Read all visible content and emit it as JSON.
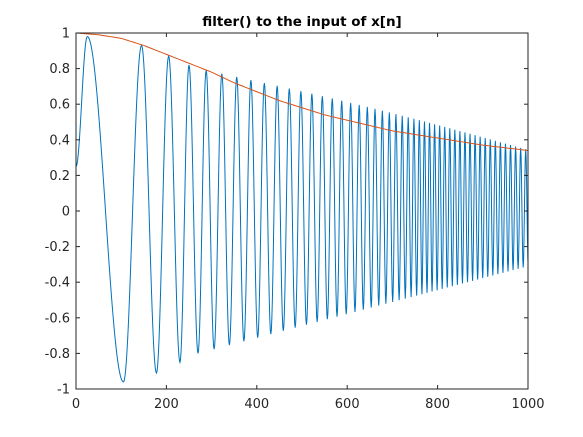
{
  "chart_data": {
    "type": "line",
    "title": "filter() to the input of x[n]",
    "xlabel": "",
    "ylabel": "",
    "xlim": [
      0,
      1000
    ],
    "ylim": [
      -1,
      1
    ],
    "xticks": [
      0,
      200,
      400,
      600,
      800,
      1000
    ],
    "xtick_labels": [
      "0",
      "200",
      "400",
      "600",
      "800",
      "1000"
    ],
    "yticks": [
      -1,
      -0.8,
      -0.6,
      -0.4,
      -0.2,
      0,
      0.2,
      0.4,
      0.6,
      0.8,
      1
    ],
    "ytick_labels": [
      "-1",
      "-0.8",
      "-0.6",
      "-0.4",
      "-0.2",
      "0",
      "0.2",
      "0.4",
      "0.6",
      "0.8",
      "1"
    ],
    "grid": false,
    "legend": "none",
    "series": [
      {
        "kind": "oscillation",
        "color": "#0072BD",
        "x_peaks": [
          25,
          145,
          205,
          250,
          288
        ],
        "y_peaks": [
          0.98,
          0.93,
          0.87,
          0.82,
          0.79
        ],
        "x_troughs": [
          105,
          178,
          230,
          270
        ],
        "y_troughs": [
          -0.96,
          -0.91,
          -0.85,
          -0.8
        ],
        "x_end": 1000,
        "y_end_peak": 0.34,
        "y_end_trough": -0.31,
        "y_start": 0.25
      },
      {
        "kind": "envelope",
        "color": "#D95319",
        "x": [
          0,
          50,
          100,
          150,
          200,
          250,
          300,
          350,
          400,
          450,
          500,
          550,
          600,
          650,
          700,
          750,
          800,
          850,
          900,
          950,
          1000
        ],
        "y": [
          1.0,
          0.99,
          0.97,
          0.93,
          0.88,
          0.83,
          0.78,
          0.72,
          0.67,
          0.62,
          0.58,
          0.54,
          0.51,
          0.48,
          0.45,
          0.43,
          0.41,
          0.39,
          0.37,
          0.355,
          0.34
        ]
      }
    ]
  }
}
